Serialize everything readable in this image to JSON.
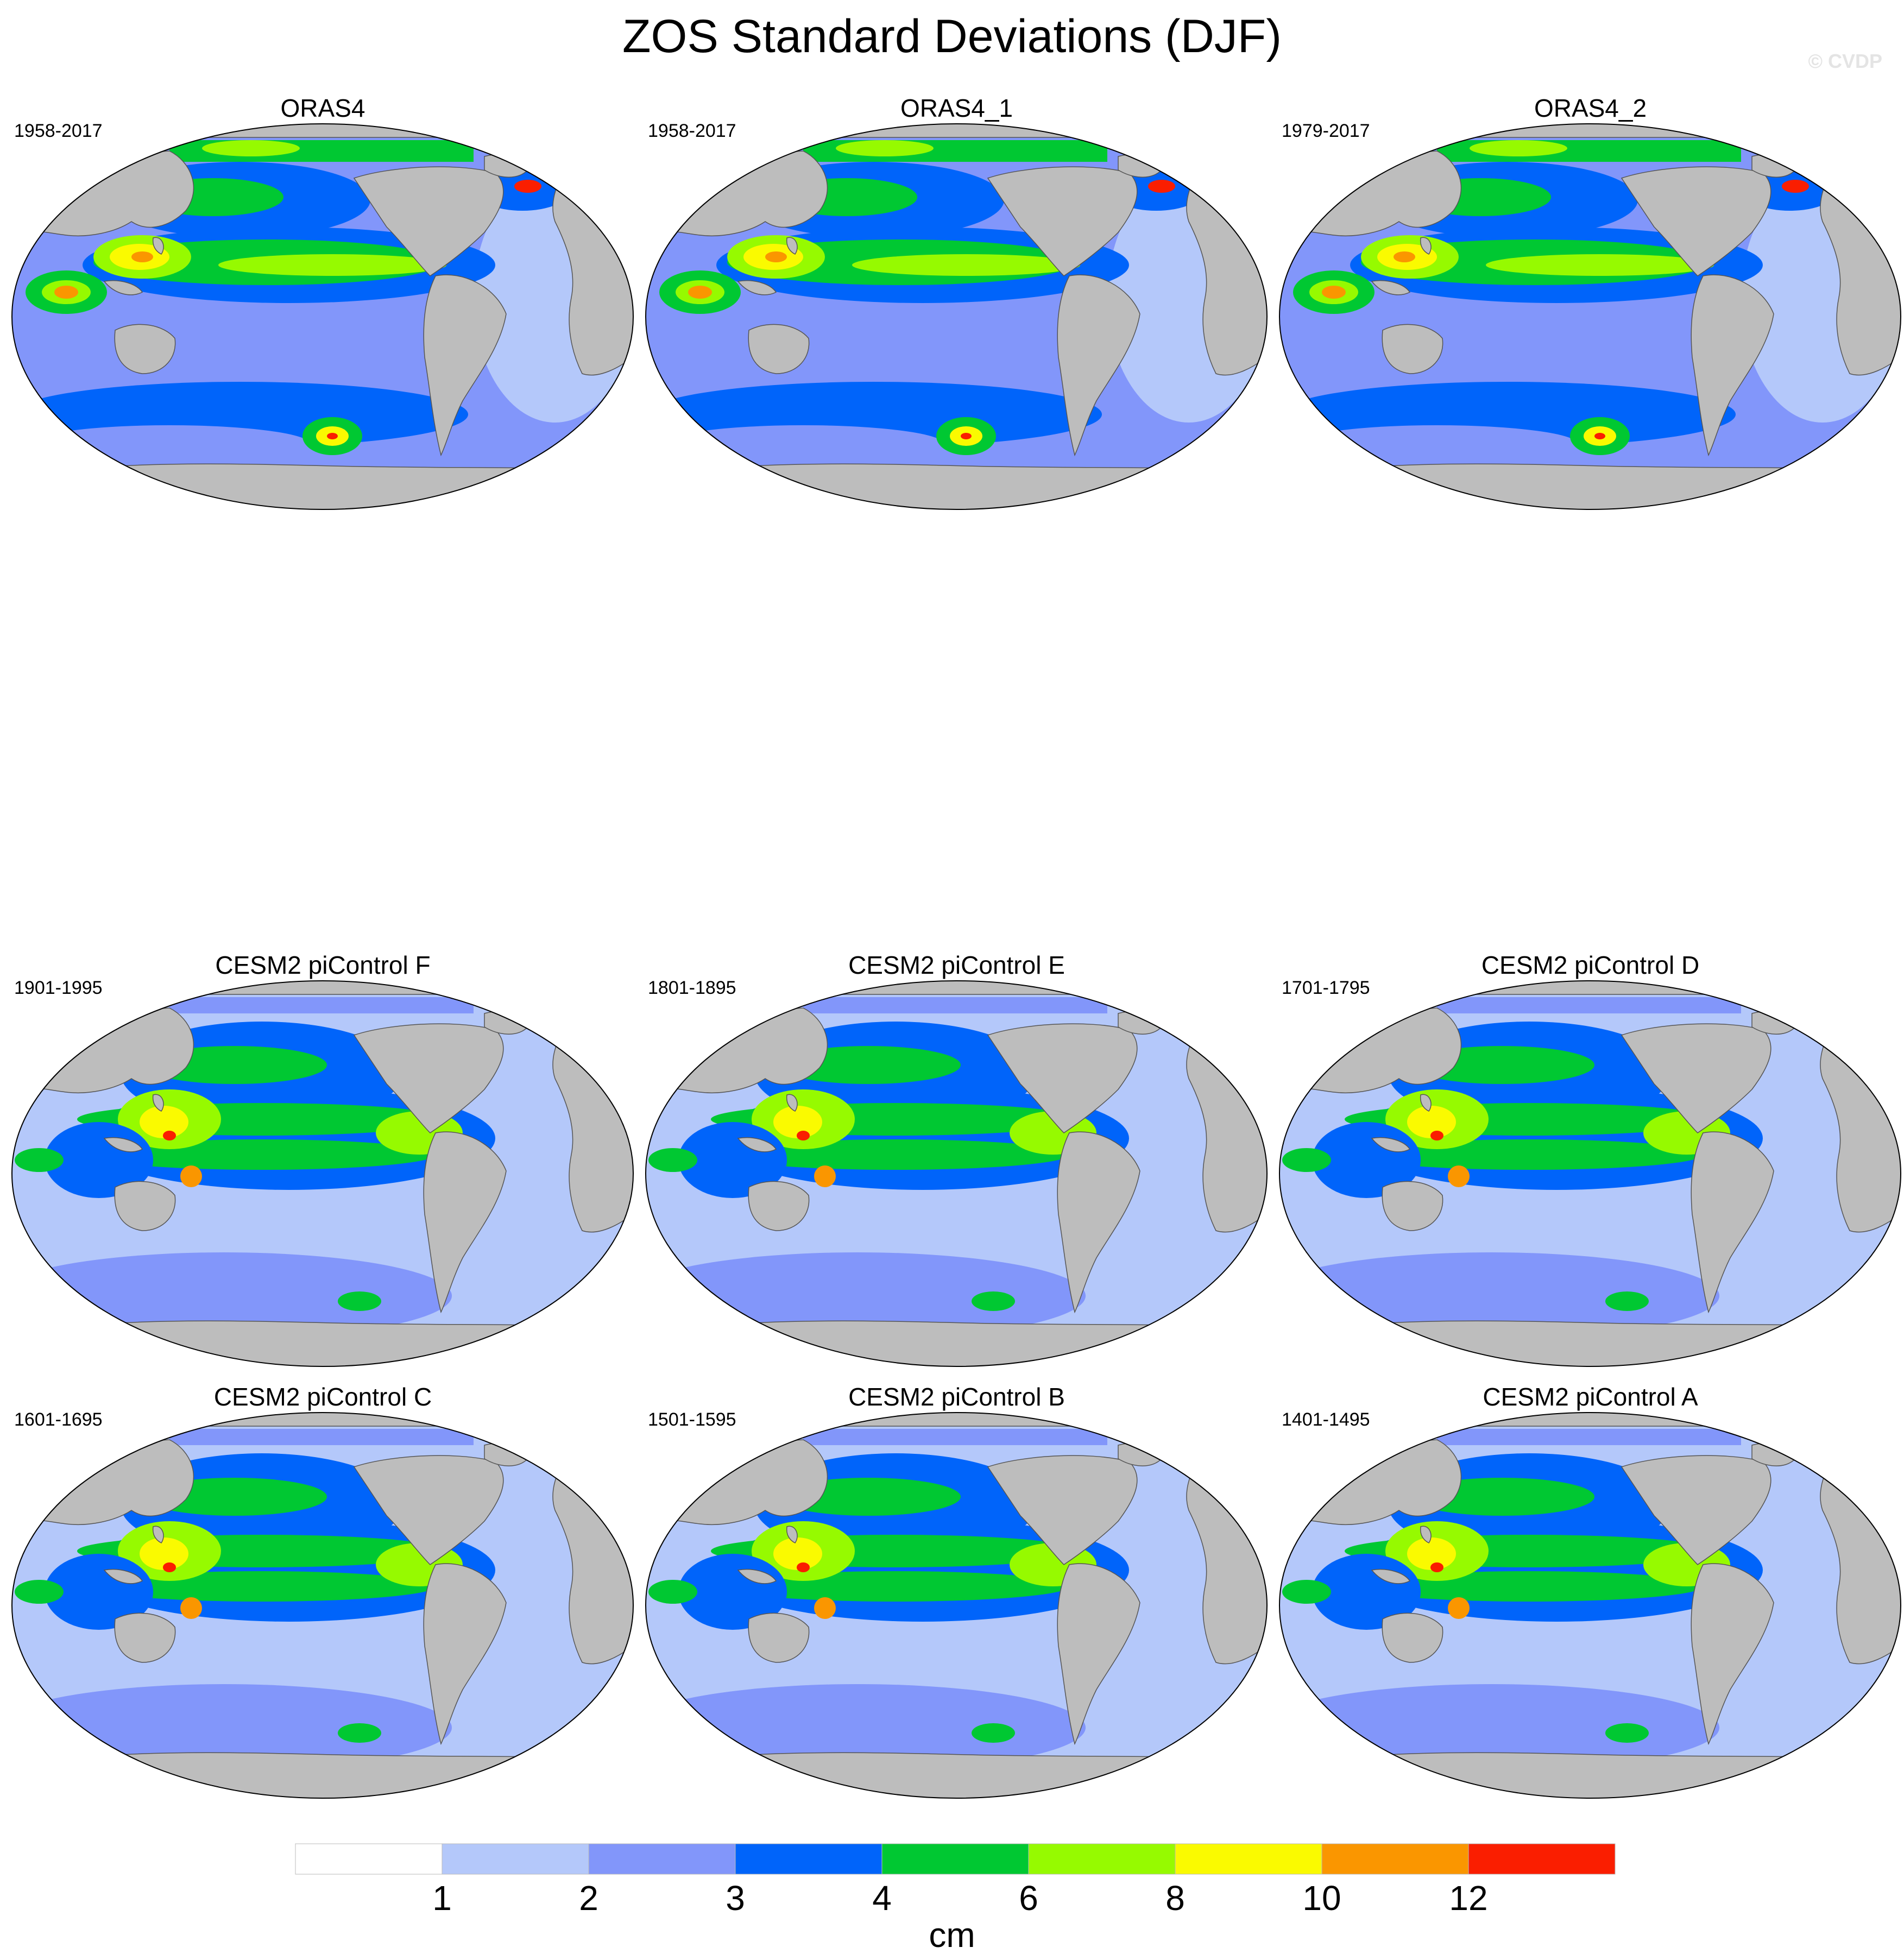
{
  "title": "ZOS Standard Deviations (DJF)",
  "watermark": "© CVDP",
  "colors": {
    "land": "#bdbdbd",
    "levels": [
      "#ffffff",
      "#b4c8fa",
      "#8296fa",
      "#0064fa",
      "#00c832",
      "#96fa00",
      "#fafa00",
      "#fa9600",
      "#fa1e00"
    ]
  },
  "panels": [
    {
      "title": "ORAS4",
      "period": "1958-2017"
    },
    {
      "title": "ORAS4_1",
      "period": "1958-2017"
    },
    {
      "title": "ORAS4_2",
      "period": "1979-2017"
    },
    {
      "title": "CESM2 piControl F",
      "period": "1901-1995"
    },
    {
      "title": "CESM2 piControl E",
      "period": "1801-1895"
    },
    {
      "title": "CESM2 piControl D",
      "period": "1701-1795"
    },
    {
      "title": "CESM2 piControl C",
      "period": "1601-1695"
    },
    {
      "title": "CESM2 piControl B",
      "period": "1501-1595"
    },
    {
      "title": "CESM2 piControl A",
      "period": "1401-1495"
    }
  ],
  "colorbar": {
    "unit": "cm",
    "labels": [
      "1",
      "2",
      "3",
      "4",
      "6",
      "8",
      "10",
      "12"
    ]
  }
}
